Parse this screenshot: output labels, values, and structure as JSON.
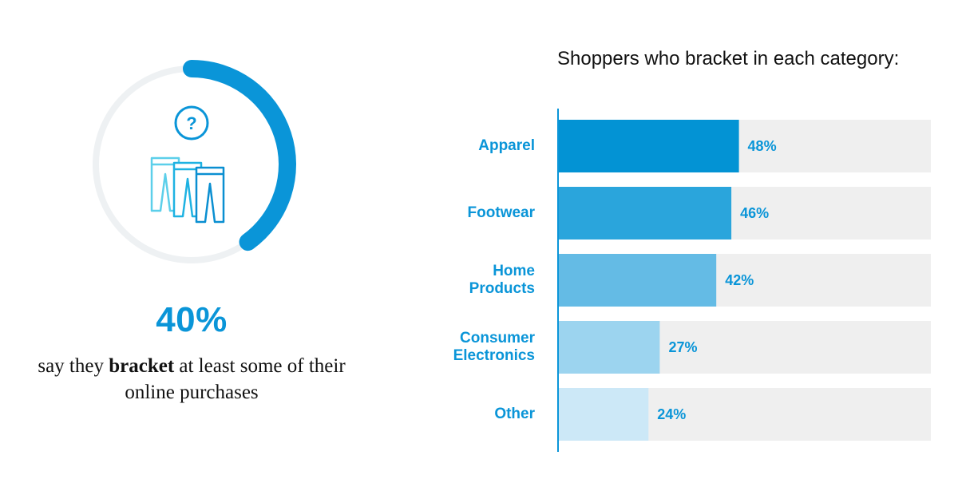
{
  "stat": {
    "value": "40%",
    "percent": 40,
    "caption_pre": "say they ",
    "caption_bold": "bracket",
    "caption_post": " at least some of their online purchases",
    "icons": [
      "question-icon",
      "pants-icon"
    ],
    "colors": {
      "arc": "#0a95d8",
      "track": "#eef1f3"
    }
  },
  "chart_data": {
    "type": "bar",
    "orientation": "horizontal",
    "title": "Shoppers who bracket in each category:",
    "categories": [
      "Apparel",
      "Footwear",
      "Home Products",
      "Consumer Electronics",
      "Other"
    ],
    "category_lines": [
      [
        "Apparel"
      ],
      [
        "Footwear"
      ],
      [
        "Home",
        "Products"
      ],
      [
        "Consumer",
        "Electronics"
      ],
      [
        "Other"
      ]
    ],
    "values": [
      48,
      46,
      42,
      27,
      24
    ],
    "value_labels": [
      "48%",
      "46%",
      "42%",
      "27%",
      "24%"
    ],
    "xlim": [
      0,
      100
    ],
    "grid": false,
    "legend": "none",
    "colors": [
      "#0393d4",
      "#2aa5dc",
      "#64bbe5",
      "#9cd4ef",
      "#cce8f7"
    ],
    "track_color": "#efefef",
    "axis_color": "#0a95d8"
  }
}
